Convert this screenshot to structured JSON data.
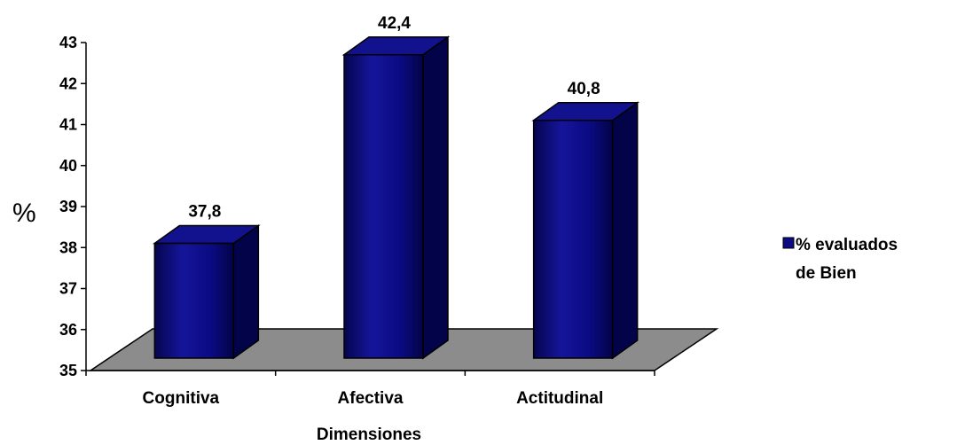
{
  "chart_data": {
    "type": "bar",
    "title": "",
    "categories": [
      "Cognitiva",
      "Afectiva",
      "Actitudinal"
    ],
    "series": [
      {
        "name": "% evaluados de Bien",
        "values": [
          37.8,
          42.4,
          40.8
        ]
      }
    ],
    "data_labels": [
      "37,8",
      "42,4",
      "40,8"
    ],
    "xlabel": "Dimensiones",
    "ylabel": "%",
    "ylim": [
      35,
      43
    ],
    "yticks": [
      35,
      36,
      37,
      38,
      39,
      40,
      41,
      42,
      43
    ],
    "legend": {
      "position": "right",
      "lines": [
        "% evaluados",
        "de Bien"
      ]
    },
    "style": "3d-column",
    "colors": {
      "bar": "#0a0a82",
      "bar_side": "#03034a",
      "bar_top": "#12128f",
      "floor": "#8c8c8c"
    },
    "grid": false
  }
}
